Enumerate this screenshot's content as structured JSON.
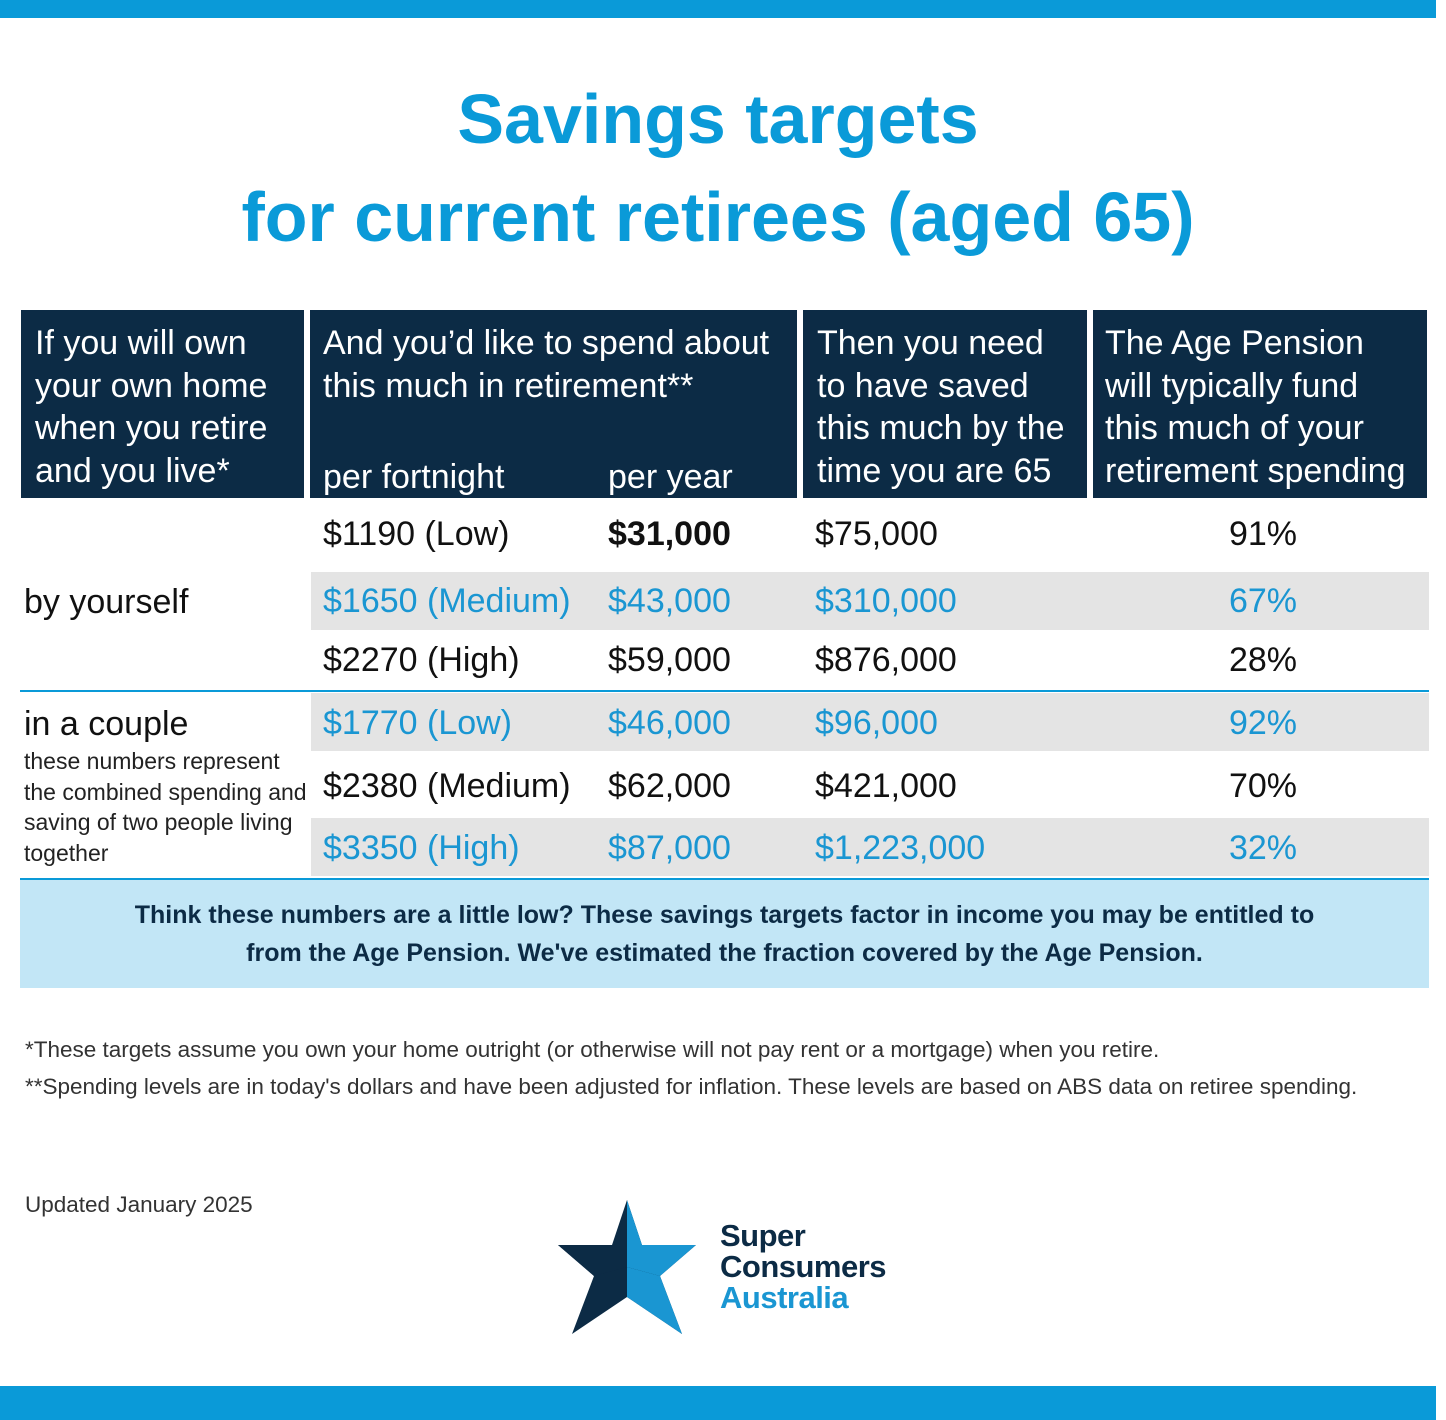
{
  "title": {
    "line1": "Savings targets",
    "line2": "for current retirees (aged 65)"
  },
  "table": {
    "headers": {
      "col1": [
        "If you will own",
        "your own home",
        "when you retire",
        "and you live*"
      ],
      "col2": [
        "And you’d like to spend about",
        "this much in retirement**"
      ],
      "col2_sub_fortnight": "per fortnight",
      "col2_sub_year": "per year",
      "col3": [
        "Then you need",
        "to have saved",
        "this much by the",
        "time you are 65"
      ],
      "col4": [
        "The Age Pension",
        "will typically fund",
        "this much of your",
        "retirement spending"
      ]
    },
    "groups": {
      "single": {
        "label": "by yourself",
        "rows": [
          {
            "fortnight": "$1190 (Low)",
            "year": "$31,000",
            "saved": "$75,000",
            "pension": "91%"
          },
          {
            "fortnight": "$1650 (Medium)",
            "year": "$43,000",
            "saved": "$310,000",
            "pension": "67%"
          },
          {
            "fortnight": "$2270 (High)",
            "year": "$59,000",
            "saved": "$876,000",
            "pension": "28%"
          }
        ]
      },
      "couple": {
        "label": "in a couple",
        "note": "these numbers represent the combined spending and saving of two people living together",
        "rows": [
          {
            "fortnight": "$1770 (Low)",
            "year": "$46,000",
            "saved": "$96,000",
            "pension": "92%"
          },
          {
            "fortnight": "$2380 (Medium)",
            "year": "$62,000",
            "saved": "$421,000",
            "pension": "70%"
          },
          {
            "fortnight": "$3350 (High)",
            "year": "$87,000",
            "saved": "$1,223,000",
            "pension": "32%"
          }
        ]
      }
    }
  },
  "callout": {
    "line1": "Think these numbers are a little low? These savings targets factor in income you may be entitled to",
    "line2": "from the Age Pension. We've estimated the fraction covered by the Age Pension."
  },
  "footnotes": {
    "note1": "*These targets assume you own your home outright (or otherwise will not pay rent or a mortgage) when you retire.",
    "note2": "**Spending levels are in today's dollars and have been adjusted for inflation. These levels are based on ABS data on retiree spending.",
    "updated": "Updated January 2025"
  },
  "logo": {
    "icon": "star-logo-icon",
    "line1": "Super",
    "line2": "Consumers",
    "line3": "Australia"
  },
  "colors": {
    "accent_blue": "#0a9ad8",
    "navy": "#0c2b45",
    "callout_bg": "#c2e6f6",
    "band_grey": "#e4e4e4"
  }
}
